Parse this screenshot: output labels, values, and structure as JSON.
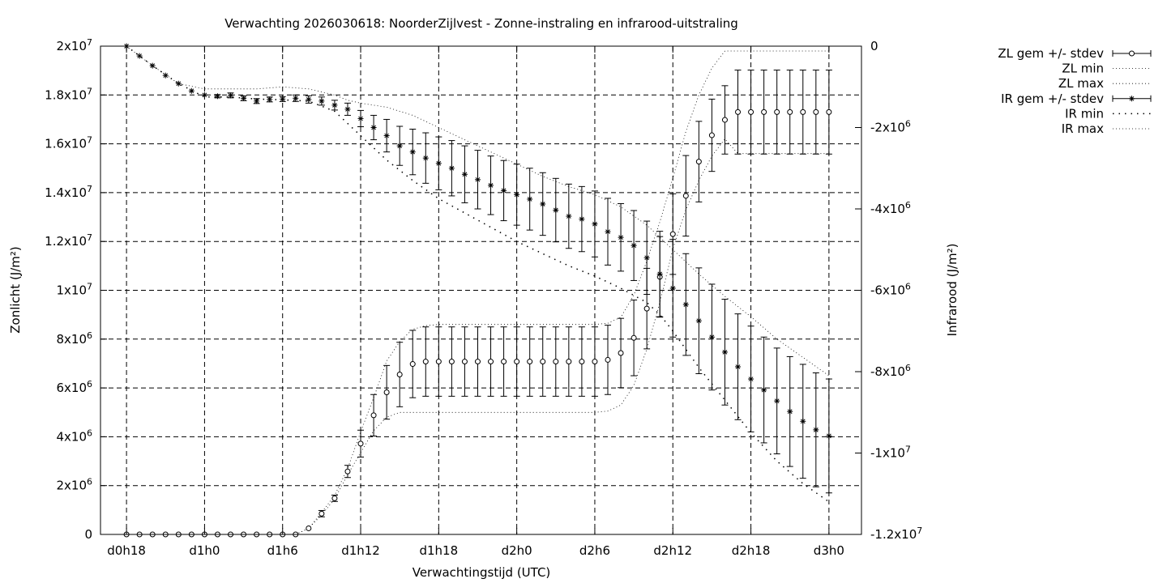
{
  "chart_data": {
    "type": "line",
    "title": "Verwachting 2026030618: NoorderZijlvest - Zonne-instraling en infrarood-uitstraling",
    "xlabel": "Verwachtingstijd (UTC)",
    "ylabel": "Zonlicht (J/m²)",
    "y2label": "Infrarood (J/m²)",
    "x_unit": "hours since d0h18",
    "x_ticks": [
      {
        "h": 0,
        "label": "d0h18"
      },
      {
        "h": 6,
        "label": "d1h0"
      },
      {
        "h": 12,
        "label": "d1h6"
      },
      {
        "h": 18,
        "label": "d1h12"
      },
      {
        "h": 24,
        "label": "d1h18"
      },
      {
        "h": 30,
        "label": "d2h0"
      },
      {
        "h": 36,
        "label": "d2h6"
      },
      {
        "h": 42,
        "label": "d2h12"
      },
      {
        "h": 48,
        "label": "d2h18"
      },
      {
        "h": 54,
        "label": "d3h0"
      }
    ],
    "xlim": [
      -2,
      56.5
    ],
    "ylim": [
      0,
      20000000
    ],
    "y2lim": [
      -12000000,
      0
    ],
    "y_ticks": [
      {
        "v": 0,
        "base": "0",
        "exp": ""
      },
      {
        "v": 2000000,
        "base": "2x10",
        "exp": "6"
      },
      {
        "v": 4000000,
        "base": "4x10",
        "exp": "6"
      },
      {
        "v": 6000000,
        "base": "6x10",
        "exp": "6"
      },
      {
        "v": 8000000,
        "base": "8x10",
        "exp": "6"
      },
      {
        "v": 10000000,
        "base": "1x10",
        "exp": "7"
      },
      {
        "v": 12000000,
        "base": "1.2x10",
        "exp": "7"
      },
      {
        "v": 14000000,
        "base": "1.4x10",
        "exp": "7"
      },
      {
        "v": 16000000,
        "base": "1.6x10",
        "exp": "7"
      },
      {
        "v": 18000000,
        "base": "1.8x10",
        "exp": "7"
      },
      {
        "v": 20000000,
        "base": "2x10",
        "exp": "7"
      }
    ],
    "y2_ticks": [
      {
        "v": 0,
        "base": "0",
        "exp": ""
      },
      {
        "v": -2000000,
        "base": "-2x10",
        "exp": "6"
      },
      {
        "v": -4000000,
        "base": "-4x10",
        "exp": "6"
      },
      {
        "v": -6000000,
        "base": "-6x10",
        "exp": "6"
      },
      {
        "v": -8000000,
        "base": "-8x10",
        "exp": "6"
      },
      {
        "v": -10000000,
        "base": "-1x10",
        "exp": "7"
      },
      {
        "v": -12000000,
        "base": "-1.2x10",
        "exp": "7"
      }
    ],
    "grid": true,
    "legend_position": "outside-top-right",
    "legend": [
      {
        "label": "ZL gem +/- stdev",
        "style": "errorbar-circle"
      },
      {
        "label": "ZL min",
        "style": "dotted-fine"
      },
      {
        "label": "ZL max",
        "style": "dotted-fine"
      },
      {
        "label": "IR gem +/- stdev",
        "style": "errorbar-star"
      },
      {
        "label": "IR min",
        "style": "dotted-coarse"
      },
      {
        "label": "IR max",
        "style": "dotted-fine"
      }
    ],
    "series": [
      {
        "name": "ZL gem +/- stdev",
        "axis": "y1",
        "x": [
          0,
          1,
          2,
          3,
          4,
          5,
          6,
          7,
          8,
          9,
          10,
          11,
          12,
          13,
          14,
          15,
          16,
          17,
          18,
          19,
          20,
          21,
          22,
          23,
          24,
          25,
          26,
          27,
          28,
          29,
          30,
          31,
          32,
          33,
          34,
          35,
          36,
          37,
          38,
          39,
          40,
          41,
          42,
          43,
          44,
          45,
          46,
          47,
          48,
          49,
          50,
          51,
          52,
          53,
          54
        ],
        "mean": [
          0,
          0,
          0,
          0,
          0,
          0,
          0,
          0,
          0,
          0,
          0,
          0,
          0,
          0,
          250000,
          850000,
          1480000,
          2580000,
          3720000,
          4880000,
          5820000,
          6550000,
          6980000,
          7080000,
          7080000,
          7080000,
          7080000,
          7080000,
          7080000,
          7080000,
          7080000,
          7080000,
          7080000,
          7080000,
          7080000,
          7080000,
          7080000,
          7150000,
          7430000,
          8050000,
          9250000,
          10550000,
          12300000,
          13870000,
          15270000,
          16350000,
          16980000,
          17300000,
          17300000,
          17300000,
          17300000,
          17300000,
          17300000,
          17300000,
          17300000
        ],
        "stdev": [
          0,
          0,
          0,
          0,
          0,
          0,
          0,
          0,
          0,
          0,
          0,
          0,
          0,
          0,
          0,
          130000,
          130000,
          250000,
          550000,
          850000,
          1100000,
          1320000,
          1380000,
          1420000,
          1420000,
          1420000,
          1420000,
          1420000,
          1420000,
          1420000,
          1420000,
          1420000,
          1420000,
          1420000,
          1420000,
          1420000,
          1420000,
          1420000,
          1420000,
          1550000,
          1650000,
          1650000,
          1650000,
          1650000,
          1650000,
          1480000,
          1400000,
          1720000,
          1720000,
          1720000,
          1720000,
          1720000,
          1720000,
          1720000,
          1720000
        ]
      },
      {
        "name": "ZL min",
        "axis": "y1",
        "x": [
          13,
          14,
          15,
          16,
          17,
          18,
          19,
          20,
          21,
          22,
          23,
          24,
          26,
          28,
          30,
          32,
          34,
          36,
          37,
          38,
          39,
          40,
          41,
          42,
          43,
          44,
          45,
          46,
          47,
          48,
          49,
          50,
          51,
          52,
          53,
          54
        ],
        "values": [
          0,
          250000,
          800000,
          1450000,
          2450000,
          3350000,
          4250000,
          4800000,
          5000000,
          5000000,
          5000000,
          5000000,
          5000000,
          5000000,
          5000000,
          5000000,
          5000000,
          5000000,
          5050000,
          5300000,
          6100000,
          7600000,
          9500000,
          11700000,
          13300000,
          14500000,
          15500000,
          16200000,
          15600000,
          15600000,
          15600000,
          15600000,
          15600000,
          15600000,
          15600000,
          15600000
        ]
      },
      {
        "name": "ZL max",
        "axis": "y1",
        "x": [
          13,
          14,
          15,
          16,
          17,
          18,
          19,
          20,
          21,
          22,
          23,
          24,
          26,
          28,
          30,
          32,
          34,
          36,
          37,
          38,
          39,
          40,
          41,
          42,
          43,
          44,
          45,
          46,
          47,
          48,
          49,
          50,
          51,
          52,
          53,
          54
        ],
        "values": [
          0,
          250000,
          900000,
          1600000,
          2700000,
          4200000,
          5600000,
          7100000,
          7900000,
          8400000,
          8550000,
          8600000,
          8600000,
          8600000,
          8600000,
          8600000,
          8600000,
          8600000,
          8650000,
          8900000,
          9800000,
          11200000,
          12800000,
          14600000,
          16500000,
          18000000,
          19100000,
          19800000,
          19800000,
          19800000,
          19800000,
          19800000,
          19800000,
          19800000,
          19800000,
          19800000
        ]
      },
      {
        "name": "IR gem +/- stdev",
        "axis": "y2",
        "x": [
          0,
          1,
          2,
          3,
          4,
          5,
          6,
          7,
          8,
          9,
          10,
          11,
          12,
          13,
          14,
          15,
          16,
          17,
          18,
          19,
          20,
          21,
          22,
          23,
          24,
          25,
          26,
          27,
          28,
          29,
          30,
          31,
          32,
          33,
          34,
          35,
          36,
          37,
          38,
          39,
          40,
          41,
          42,
          43,
          44,
          45,
          46,
          47,
          48,
          49,
          50,
          51,
          52,
          53,
          54
        ],
        "mean": [
          0,
          -240000,
          -480000,
          -720000,
          -920000,
          -1100000,
          -1200000,
          -1230000,
          -1210000,
          -1280000,
          -1350000,
          -1310000,
          -1300000,
          -1280000,
          -1310000,
          -1350000,
          -1450000,
          -1550000,
          -1780000,
          -2000000,
          -2200000,
          -2450000,
          -2600000,
          -2750000,
          -2880000,
          -3000000,
          -3150000,
          -3280000,
          -3420000,
          -3550000,
          -3650000,
          -3760000,
          -3880000,
          -4030000,
          -4180000,
          -4250000,
          -4370000,
          -4560000,
          -4700000,
          -4900000,
          -5200000,
          -5600000,
          -5950000,
          -6350000,
          -6750000,
          -7150000,
          -7520000,
          -7880000,
          -8180000,
          -8450000,
          -8720000,
          -8980000,
          -9220000,
          -9430000,
          -9580000
        ],
        "stdev": [
          0,
          0,
          0,
          0,
          0,
          0,
          0,
          40000,
          60000,
          60000,
          60000,
          60000,
          60000,
          80000,
          90000,
          100000,
          120000,
          150000,
          200000,
          300000,
          400000,
          480000,
          560000,
          620000,
          650000,
          680000,
          700000,
          720000,
          720000,
          740000,
          750000,
          760000,
          770000,
          780000,
          790000,
          800000,
          810000,
          820000,
          830000,
          860000,
          900000,
          1050000,
          1200000,
          1250000,
          1300000,
          1300000,
          1300000,
          1300000,
          1300000,
          1300000,
          1300000,
          1350000,
          1400000,
          1400000,
          1400000
        ]
      },
      {
        "name": "IR min",
        "axis": "y2",
        "x": [
          0,
          2,
          4,
          6,
          8,
          10,
          12,
          14,
          16,
          17,
          18,
          20,
          22,
          24,
          26,
          28,
          30,
          32,
          34,
          36,
          38,
          40,
          41,
          42,
          43,
          44,
          46,
          48,
          50,
          52,
          54
        ],
        "values": [
          0,
          -480000,
          -920000,
          -1250000,
          -1250000,
          -1300000,
          -1320000,
          -1350000,
          -1600000,
          -1900000,
          -2200000,
          -2800000,
          -3300000,
          -3750000,
          -4100000,
          -4450000,
          -4800000,
          -5100000,
          -5400000,
          -5650000,
          -5950000,
          -6300000,
          -6600000,
          -7000000,
          -7450000,
          -7900000,
          -8700000,
          -9500000,
          -10200000,
          -10750000,
          -11200000
        ]
      },
      {
        "name": "IR max",
        "axis": "y2",
        "x": [
          0,
          2,
          4,
          6,
          8,
          10,
          12,
          14,
          16,
          17,
          18,
          20,
          22,
          24,
          26,
          28,
          30,
          32,
          34,
          36,
          38,
          40,
          42,
          44,
          46,
          48,
          50,
          52,
          54
        ],
        "values": [
          0,
          -480000,
          -920000,
          -1050000,
          -1050000,
          -1050000,
          -1000000,
          -1050000,
          -1200000,
          -1330000,
          -1400000,
          -1500000,
          -1700000,
          -2000000,
          -2300000,
          -2600000,
          -2900000,
          -3200000,
          -3450000,
          -3650000,
          -3950000,
          -4400000,
          -5000000,
          -5600000,
          -6150000,
          -6650000,
          -7200000,
          -7650000,
          -8100000
        ]
      }
    ]
  }
}
